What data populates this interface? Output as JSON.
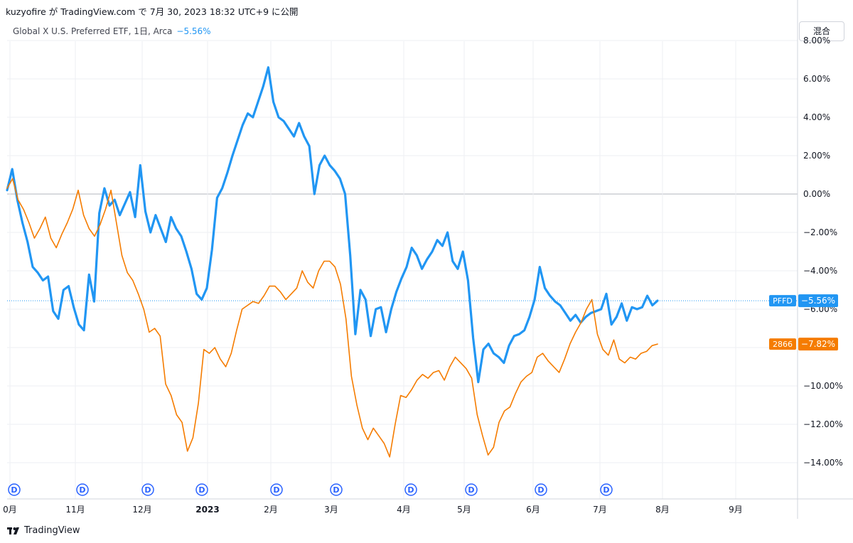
{
  "header": {
    "publish_line": "kuzyofire が TradingView.com で 7月 30, 2023 18:32 UTC+9 に公開",
    "symbol_line": "Global X U.S. Preferred ETF, 1日, Arca",
    "change": "−5.56%"
  },
  "controls": {
    "mode_label": "混合"
  },
  "footer": {
    "brand": "TradingView"
  },
  "colors": {
    "pffd": "#2196f3",
    "s2866": "#f57c00",
    "grid": "#edeff3",
    "axis": "#787b86"
  },
  "chart_data": {
    "type": "line",
    "title": "Global X U.S. Preferred ETF, 1日, Arca",
    "y_unit": "%",
    "ylim": [
      -16,
      8
    ],
    "y_ticks": [
      "8.00%",
      "6.00%",
      "4.00%",
      "2.00%",
      "0.00%",
      "−2.00%",
      "−4.00%",
      "−6.00%",
      "−8.00%",
      "−10.00%",
      "−12.00%",
      "−14.00%"
    ],
    "x_ticks": [
      "0月",
      "11月",
      "12月",
      "2023",
      "2月",
      "3月",
      "4月",
      "5月",
      "6月",
      "7月",
      "8月",
      "9月"
    ],
    "dividend_marker": "D",
    "dividend_count": 10,
    "grid": true,
    "series": [
      {
        "name": "PFFD",
        "last_label": "PFFD",
        "last_value": "−5.56%",
        "values": [
          0.2,
          1.3,
          -0.3,
          -1.5,
          -2.5,
          -3.8,
          -4.1,
          -4.5,
          -4.3,
          -6.1,
          -6.5,
          -5.0,
          -4.8,
          -5.9,
          -6.8,
          -7.1,
          -4.2,
          -5.6,
          -1.0,
          0.3,
          -0.6,
          -0.3,
          -1.1,
          -0.5,
          0.1,
          -1.2,
          1.5,
          -0.9,
          -2.0,
          -1.1,
          -1.8,
          -2.5,
          -1.2,
          -1.8,
          -2.2,
          -3.0,
          -3.9,
          -5.2,
          -5.5,
          -4.9,
          -2.9,
          -0.2,
          0.3,
          1.1,
          2.0,
          2.8,
          3.6,
          4.2,
          4.0,
          4.8,
          5.6,
          6.6,
          4.8,
          4.0,
          3.8,
          3.4,
          3.0,
          3.7,
          3.0,
          2.5,
          0.0,
          1.5,
          2.0,
          1.5,
          1.2,
          0.8,
          0.0,
          -3.2,
          -7.3,
          -5.0,
          -5.5,
          -7.4,
          -6.0,
          -5.9,
          -7.2,
          -6.0,
          -5.1,
          -4.4,
          -3.8,
          -2.8,
          -3.2,
          -3.9,
          -3.4,
          -3.0,
          -2.4,
          -2.7,
          -2.0,
          -3.5,
          -3.9,
          -3.0,
          -4.5,
          -7.5,
          -9.8,
          -8.1,
          -7.8,
          -8.3,
          -8.5,
          -8.8,
          -7.9,
          -7.4,
          -7.3,
          -7.1,
          -6.4,
          -5.5,
          -3.8,
          -4.9,
          -5.3,
          -5.6,
          -5.8,
          -6.2,
          -6.6,
          -6.3,
          -6.7,
          -6.4,
          -6.2,
          -6.1,
          -6.0,
          -5.2,
          -6.8,
          -6.4,
          -5.7,
          -6.6,
          -5.9,
          -6.0,
          -5.9,
          -5.3,
          -5.8,
          -5.56
        ],
        "color": "#2196f3"
      },
      {
        "name": "2866",
        "last_label": "2866",
        "last_value": "−7.82%",
        "values": [
          0.3,
          0.8,
          -0.3,
          -0.8,
          -1.5,
          -2.3,
          -1.8,
          -1.2,
          -2.3,
          -2.8,
          -2.1,
          -1.5,
          -0.8,
          0.2,
          -1.1,
          -1.8,
          -2.2,
          -1.6,
          -0.8,
          0.2,
          -1.5,
          -3.2,
          -4.1,
          -4.5,
          -5.2,
          -6.0,
          -7.2,
          -7.0,
          -7.4,
          -9.9,
          -10.5,
          -11.5,
          -11.9,
          -13.4,
          -12.7,
          -10.9,
          -8.1,
          -8.3,
          -8.0,
          -8.6,
          -9.0,
          -8.3,
          -7.1,
          -6.0,
          -5.8,
          -5.6,
          -5.7,
          -5.3,
          -4.8,
          -4.8,
          -5.1,
          -5.5,
          -5.2,
          -4.9,
          -4.0,
          -4.6,
          -4.9,
          -4.0,
          -3.5,
          -3.5,
          -3.8,
          -4.7,
          -6.5,
          -9.5,
          -11.0,
          -12.2,
          -12.8,
          -12.2,
          -12.6,
          -13.0,
          -13.7,
          -12.0,
          -10.5,
          -10.6,
          -10.2,
          -9.7,
          -9.4,
          -9.6,
          -9.3,
          -9.2,
          -9.7,
          -9.0,
          -8.5,
          -8.8,
          -9.1,
          -9.6,
          -11.5,
          -12.6,
          -13.6,
          -13.2,
          -11.9,
          -11.3,
          -11.1,
          -10.4,
          -9.8,
          -9.5,
          -9.3,
          -8.5,
          -8.3,
          -8.7,
          -9.0,
          -9.3,
          -8.6,
          -7.8,
          -7.2,
          -6.7,
          -6.0,
          -5.5,
          -7.3,
          -8.1,
          -8.4,
          -7.6,
          -8.6,
          -8.8,
          -8.5,
          -8.6,
          -8.3,
          -8.2,
          -7.9,
          -7.82
        ],
        "color": "#f57c00"
      }
    ]
  }
}
